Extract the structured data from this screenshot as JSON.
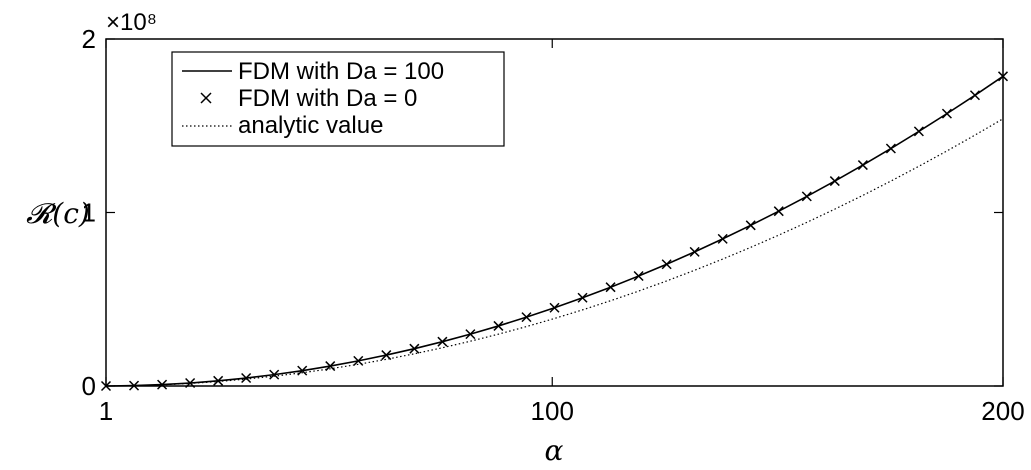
{
  "chart_data": {
    "type": "line",
    "xlabel": "α",
    "ylabel": "𝓡(c)",
    "exponent_label": "×10⁸",
    "xlim": [
      1,
      200
    ],
    "ylim": [
      0,
      2
    ],
    "y_scale_factor": 100000000,
    "x_ticks": [
      1,
      100,
      200
    ],
    "x_tick_labels": [
      "1",
      "100",
      "200"
    ],
    "y_ticks": [
      0,
      1,
      2
    ],
    "y_tick_labels": [
      "0",
      "1",
      "2"
    ],
    "grid": false,
    "legend_position": "top-left",
    "x": [
      1,
      7.22,
      13.44,
      19.66,
      25.88,
      32.09,
      38.31,
      44.53,
      50.75,
      56.97,
      63.19,
      69.41,
      75.63,
      81.84,
      88.06,
      94.28,
      100.5,
      106.72,
      112.94,
      119.16,
      125.38,
      131.59,
      137.81,
      144.03,
      150.25,
      156.47,
      162.69,
      168.91,
      175.13,
      181.34,
      187.56,
      193.78,
      200
    ],
    "series": [
      {
        "name": "FDM with Da = 100",
        "style": "solid",
        "color": "#000000",
        "values": [
          0.0,
          0.0023,
          0.008,
          0.0172,
          0.0299,
          0.046,
          0.0655,
          0.0885,
          0.115,
          0.1449,
          0.1783,
          0.2151,
          0.2554,
          0.2991,
          0.3463,
          0.3969,
          0.451,
          0.5085,
          0.5695,
          0.6339,
          0.7018,
          0.7731,
          0.8478,
          0.926,
          1.0077,
          1.0928,
          1.1813,
          1.2733,
          1.3687,
          1.4676,
          1.5699,
          1.6757,
          1.7849
        ]
      },
      {
        "name": "FDM with Da = 0",
        "style": "marker-x",
        "color": "#000000",
        "values": [
          0.0,
          0.0023,
          0.008,
          0.0172,
          0.0299,
          0.046,
          0.0655,
          0.0885,
          0.115,
          0.1449,
          0.1783,
          0.2151,
          0.2554,
          0.2991,
          0.3463,
          0.3969,
          0.451,
          0.5085,
          0.5695,
          0.6339,
          0.7018,
          0.7731,
          0.8478,
          0.926,
          1.0077,
          1.0928,
          1.1813,
          1.2733,
          1.3687,
          1.4676,
          1.5699,
          1.6757,
          1.7849
        ]
      },
      {
        "name": "analytic value",
        "style": "dotted",
        "color": "#000000",
        "values": [
          0.0,
          0.0019,
          0.0069,
          0.0148,
          0.0258,
          0.0397,
          0.0565,
          0.0764,
          0.0992,
          0.125,
          0.1538,
          0.1856,
          0.2204,
          0.2581,
          0.2988,
          0.3425,
          0.3891,
          0.4388,
          0.4914,
          0.547,
          0.6056,
          0.6671,
          0.7316,
          0.7991,
          0.8696,
          0.943,
          1.0194,
          1.0988,
          1.1811,
          1.2665,
          1.3548,
          1.446,
          1.5403
        ]
      }
    ]
  }
}
